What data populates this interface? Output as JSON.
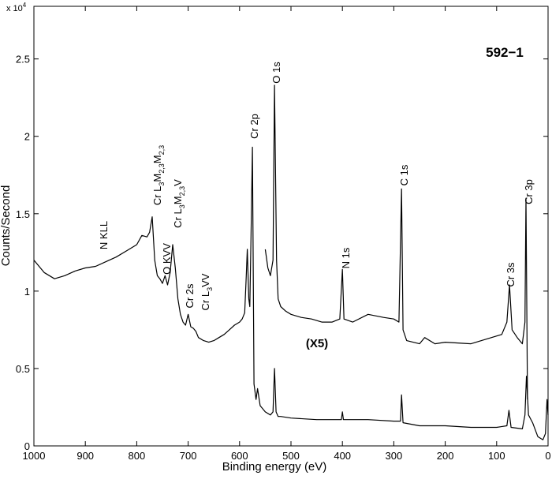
{
  "chart_data": {
    "type": "line",
    "x_label": "Binding energy (eV)",
    "y_label": "Counts/Second",
    "y_scale": {
      "base": "x 10",
      "exponent": "4"
    },
    "xlim": [
      1000,
      0
    ],
    "xticks": [
      1000,
      900,
      800,
      700,
      600,
      500,
      400,
      300,
      200,
      100,
      0
    ],
    "ylim": [
      0,
      2.84
    ],
    "yticks": [
      0,
      0.5,
      1,
      1.5,
      2,
      2.5
    ],
    "series": [
      {
        "color": "#000000",
        "x": [
          1000,
          980,
          960,
          940,
          920,
          900,
          880,
          860,
          840,
          820,
          800,
          790,
          780,
          775,
          770,
          765,
          760,
          755,
          750,
          745,
          740,
          735,
          730,
          725,
          720,
          715,
          710,
          705,
          700,
          695,
          690,
          685,
          680,
          670,
          660,
          650,
          640,
          630,
          620,
          610,
          600,
          595,
          590,
          587,
          585,
          582,
          580,
          577,
          575,
          572,
          568,
          565,
          560,
          550,
          540,
          535,
          532,
          529,
          525,
          520,
          500,
          450,
          402,
          400,
          398,
          350,
          300,
          287,
          285,
          282,
          250,
          200,
          150,
          100,
          80,
          76,
          72,
          50,
          45,
          42,
          38,
          30,
          20,
          10,
          5,
          2,
          0
        ],
        "values": [
          1.2,
          1.12,
          1.08,
          1.1,
          1.13,
          1.15,
          1.16,
          1.19,
          1.22,
          1.26,
          1.3,
          1.36,
          1.35,
          1.38,
          1.48,
          1.2,
          1.1,
          1.08,
          1.05,
          1.1,
          1.04,
          1.12,
          1.3,
          1.15,
          0.95,
          0.85,
          0.8,
          0.78,
          0.85,
          0.77,
          0.76,
          0.74,
          0.7,
          0.68,
          0.67,
          0.68,
          0.7,
          0.72,
          0.75,
          0.78,
          0.8,
          0.82,
          0.86,
          1.1,
          1.27,
          0.95,
          0.9,
          1.5,
          1.93,
          0.4,
          0.3,
          0.37,
          0.26,
          0.22,
          0.2,
          0.22,
          0.5,
          0.22,
          0.19,
          0.19,
          0.18,
          0.17,
          0.17,
          0.22,
          0.17,
          0.17,
          0.16,
          0.16,
          0.33,
          0.15,
          0.13,
          0.13,
          0.12,
          0.12,
          0.13,
          0.23,
          0.12,
          0.11,
          0.2,
          0.45,
          0.2,
          0.15,
          0.06,
          0.04,
          0.08,
          0.3,
          0.2
        ]
      },
      {
        "color": "#000000",
        "x": [
          550,
          545,
          540,
          535,
          532,
          528,
          525,
          520,
          510,
          500,
          480,
          460,
          440,
          420,
          405,
          400,
          397,
          380,
          350,
          320,
          300,
          290,
          285,
          282,
          275,
          250,
          240,
          220,
          200,
          150,
          110,
          90,
          80,
          75,
          70,
          60,
          50,
          45,
          43,
          40
        ],
        "values": [
          1.27,
          1.15,
          1.1,
          1.2,
          2.33,
          1.2,
          0.95,
          0.9,
          0.87,
          0.85,
          0.83,
          0.82,
          0.8,
          0.8,
          0.82,
          1.14,
          0.82,
          0.8,
          0.85,
          0.83,
          0.82,
          0.8,
          1.66,
          0.75,
          0.68,
          0.66,
          0.7,
          0.66,
          0.67,
          0.66,
          0.7,
          0.72,
          0.8,
          1.04,
          0.75,
          0.7,
          0.66,
          0.8,
          1.6,
          0.3
        ]
      }
    ],
    "annotations": [
      [
        "N KLL"
      ],
      [
        "Cr L",
        "3",
        "M",
        "2,3",
        "M",
        "2,3"
      ],
      [
        "O KVV"
      ],
      [
        "Cr L",
        "3",
        "M",
        "2,3",
        "V"
      ],
      [
        "Cr 2s"
      ],
      [
        "Cr L",
        "3",
        "VV"
      ],
      [
        "Cr 2p"
      ],
      [
        "O 1s"
      ],
      [
        "N 1s"
      ],
      [
        "C 1s"
      ],
      [
        "Cr 3s"
      ],
      [
        "Cr 3p"
      ]
    ],
    "sample_label": "592−1",
    "scale_note": "(X5)"
  }
}
